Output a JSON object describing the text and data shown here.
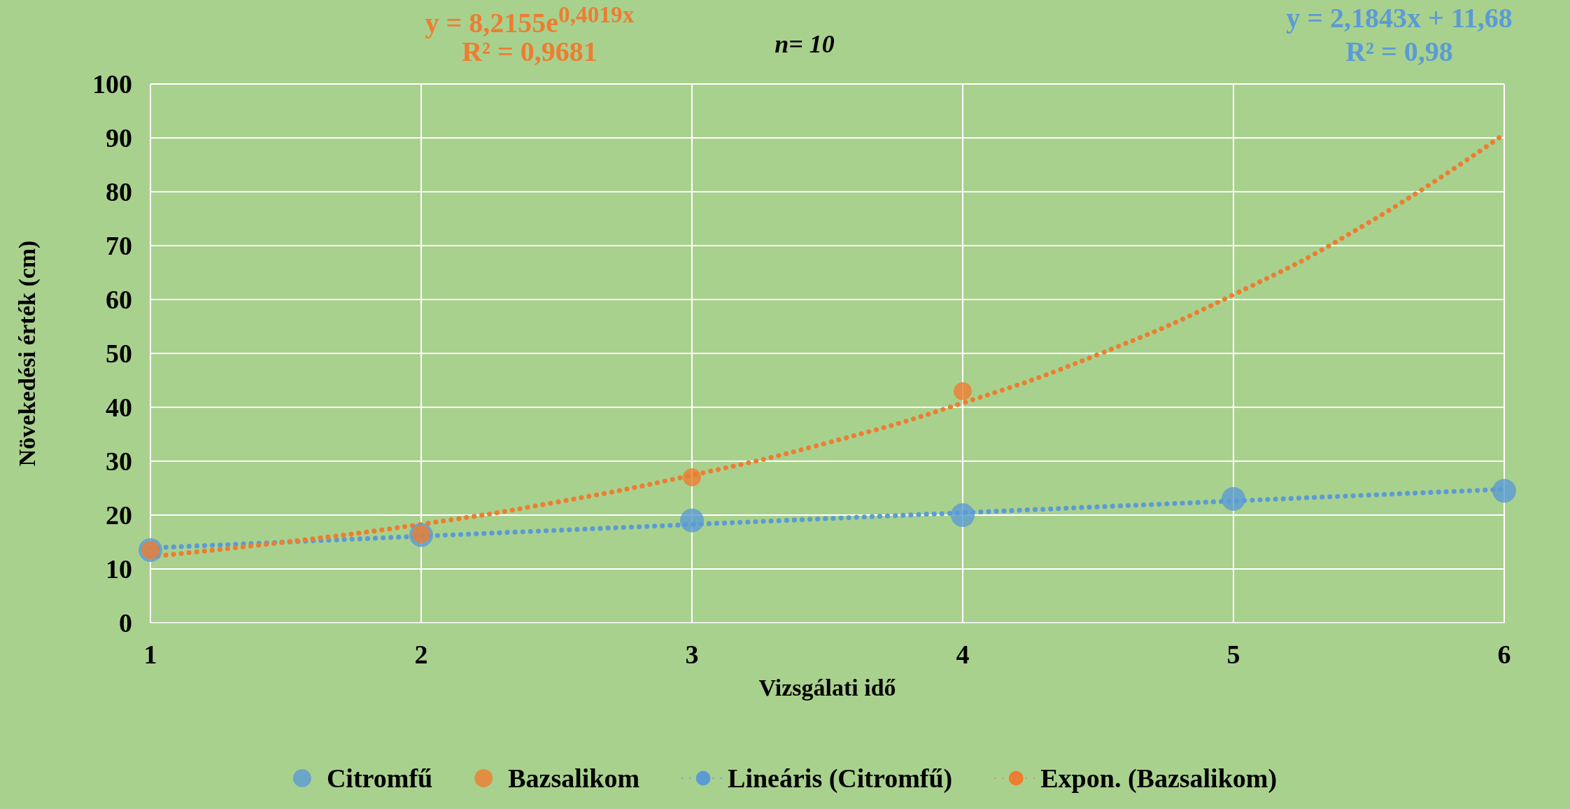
{
  "chart_data": {
    "type": "scatter",
    "subtitle": "n= 10",
    "xlabel": "Vizsgálati idő",
    "ylabel": "Növekedési érték (cm)",
    "annotations": [
      "y = 8,2155e$^{0,4019x}$",
      "R² = 0,9681",
      "y = 2,1843x + 11,68",
      "R² = 0,98"
    ],
    "xlim": [
      1,
      6
    ],
    "xticks": [
      1,
      2,
      3,
      4,
      5,
      6
    ],
    "ylim": [
      0,
      100
    ],
    "yticks": [
      0,
      10,
      20,
      30,
      40,
      50,
      60,
      70,
      80,
      90,
      100
    ],
    "grid": true,
    "legend": "bottom",
    "series": [
      {
        "name": "Citromfű",
        "color": "#5b9bd5",
        "marker": "circle",
        "x": [
          1,
          2,
          3,
          4,
          5,
          6
        ],
        "values": [
          13.5,
          16.3,
          19,
          20,
          23,
          24.5
        ]
      },
      {
        "name": "Bazsalikom",
        "color": "#ed7d31",
        "marker": "circle",
        "x": [
          1,
          2,
          3,
          4
        ],
        "values": [
          13.5,
          16.5,
          27,
          43
        ]
      },
      {
        "name": "Lineáris (Citromfű)",
        "type": "line",
        "color": "#5b9bd5",
        "marker": "none",
        "line_style": "dotted",
        "x": [
          1,
          6
        ],
        "values": [
          13.9,
          24.8
        ]
      },
      {
        "name": "Expon. (Bazsalikom)",
        "type": "line",
        "color": "#ed7d31",
        "marker": "none",
        "line_style": "dotted",
        "x": [
          1,
          1.5,
          2,
          2.5,
          3,
          3.5,
          4,
          4.5,
          5,
          5.5,
          6
        ],
        "values": [
          12.3,
          15,
          18.3,
          22.4,
          27.4,
          33.4,
          40.8,
          49.8,
          60.9,
          74.3,
          90.7
        ]
      }
    ]
  }
}
